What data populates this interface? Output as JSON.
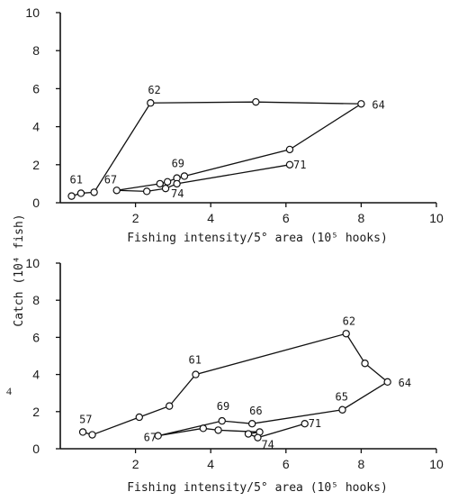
{
  "chart_data": [
    {
      "type": "line",
      "title": "",
      "xlabel": "Fishing intensity/5° area (10⁵ hooks)",
      "ylabel": "Catch (10⁴ fish)",
      "xlim": [
        0,
        10
      ],
      "ylim": [
        0,
        10
      ],
      "x_ticks": [
        "2",
        "4",
        "6",
        "8",
        "10"
      ],
      "y_ticks": [
        "0",
        "2",
        "4",
        "6",
        "8",
        "10"
      ],
      "grid": false,
      "series": [
        {
          "points": [
            {
              "x": 0.3,
              "y": 0.35,
              "label": "61"
            },
            {
              "x": 0.55,
              "y": 0.5
            },
            {
              "x": 0.9,
              "y": 0.55
            },
            {
              "x": 2.4,
              "y": 5.25,
              "label": "62"
            },
            {
              "x": 5.2,
              "y": 5.3
            },
            {
              "x": 8.0,
              "y": 5.2,
              "label": "64"
            },
            {
              "x": 6.1,
              "y": 2.8
            },
            {
              "x": 3.3,
              "y": 1.4
            },
            {
              "x": 3.1,
              "y": 1.3,
              "label": "69"
            },
            {
              "x": 2.85,
              "y": 1.1
            },
            {
              "x": 2.65,
              "y": 1.0
            },
            {
              "x": 1.5,
              "y": 0.65,
              "label": "67"
            },
            {
              "x": 2.3,
              "y": 0.6
            },
            {
              "x": 2.8,
              "y": 0.75,
              "label": "74"
            },
            {
              "x": 3.1,
              "y": 1.0
            },
            {
              "x": 6.1,
              "y": 2.0,
              "label": "71"
            }
          ]
        }
      ]
    },
    {
      "type": "line",
      "title": "",
      "xlabel": "Fishing intensity/5° area (10⁵ hooks)",
      "ylabel": "",
      "xlim": [
        0,
        10
      ],
      "ylim": [
        0,
        10
      ],
      "x_ticks": [
        "2",
        "4",
        "6",
        "8",
        "10"
      ],
      "y_ticks": [
        "0",
        "2",
        "4",
        "6",
        "8",
        "10"
      ],
      "grid": false,
      "series": [
        {
          "points": [
            {
              "x": 0.6,
              "y": 0.9,
              "label": "57"
            },
            {
              "x": 0.85,
              "y": 0.75
            },
            {
              "x": 2.1,
              "y": 1.7
            },
            {
              "x": 2.9,
              "y": 2.3
            },
            {
              "x": 3.6,
              "y": 4.0,
              "label": "61"
            },
            {
              "x": 7.6,
              "y": 6.2,
              "label": "62"
            },
            {
              "x": 8.1,
              "y": 4.6
            },
            {
              "x": 8.7,
              "y": 3.6,
              "label": "64"
            },
            {
              "x": 7.5,
              "y": 2.1,
              "label": "65"
            },
            {
              "x": 5.1,
              "y": 1.35,
              "label": "66"
            },
            {
              "x": 4.3,
              "y": 1.5,
              "label": "69"
            },
            {
              "x": 2.6,
              "y": 0.7,
              "label": "67"
            },
            {
              "x": 3.8,
              "y": 1.1
            },
            {
              "x": 4.2,
              "y": 1.0
            },
            {
              "x": 5.3,
              "y": 0.9
            },
            {
              "x": 5.0,
              "y": 0.8
            },
            {
              "x": 5.25,
              "y": 0.6,
              "label": "74"
            },
            {
              "x": 6.5,
              "y": 1.35,
              "label": "71"
            }
          ]
        }
      ]
    }
  ],
  "stray_mark": "4"
}
